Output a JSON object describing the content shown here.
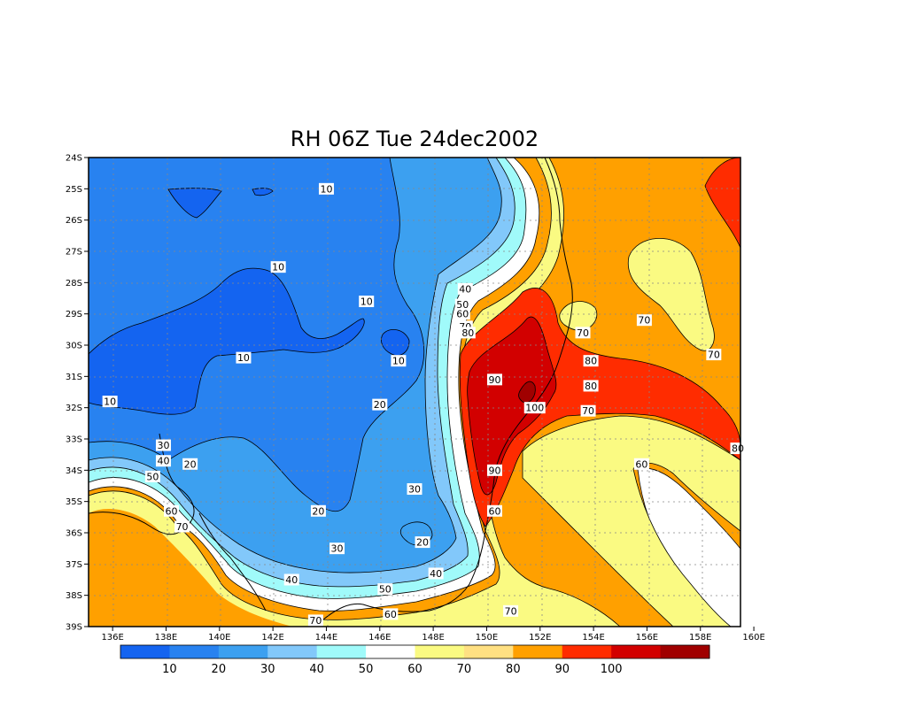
{
  "title": "RH 06Z Tue 24dec2002",
  "lat_ticks": [
    "24S",
    "25S",
    "26S",
    "27S",
    "28S",
    "29S",
    "30S",
    "31S",
    "32S",
    "33S",
    "34S",
    "35S",
    "36S",
    "37S",
    "38S",
    "39S"
  ],
  "lon_ticks": [
    "136E",
    "138E",
    "140E",
    "142E",
    "144E",
    "146E",
    "148E",
    "150E",
    "152E",
    "154E",
    "156E",
    "158E",
    "160E"
  ],
  "colorbar": {
    "colors": [
      "#1464f0",
      "#2882f0",
      "#3ca0f0",
      "#82c8fa",
      "#a0fafa",
      "#ffffff",
      "#fafa82",
      "#ffe082",
      "#ffa000",
      "#ff2c00",
      "#d20000",
      "#a00000"
    ],
    "labels": [
      "10",
      "20",
      "30",
      "40",
      "50",
      "60",
      "70",
      "80",
      "90",
      "100"
    ]
  },
  "contour_labels": [
    {
      "text": "10",
      "lon": 144.0,
      "lat": 25.0
    },
    {
      "text": "10",
      "lon": 142.2,
      "lat": 27.5
    },
    {
      "text": "10",
      "lon": 145.5,
      "lat": 28.6
    },
    {
      "text": "10",
      "lon": 140.9,
      "lat": 30.4
    },
    {
      "text": "10",
      "lon": 146.7,
      "lat": 30.5
    },
    {
      "text": "10",
      "lon": 135.9,
      "lat": 31.8
    },
    {
      "text": "20",
      "lon": 146.0,
      "lat": 31.9
    },
    {
      "text": "20",
      "lon": 138.9,
      "lat": 33.8
    },
    {
      "text": "20",
      "lon": 143.7,
      "lat": 35.3
    },
    {
      "text": "20",
      "lon": 147.6,
      "lat": 36.3
    },
    {
      "text": "30",
      "lon": 137.9,
      "lat": 33.2
    },
    {
      "text": "30",
      "lon": 147.3,
      "lat": 34.6
    },
    {
      "text": "30",
      "lon": 144.4,
      "lat": 36.5
    },
    {
      "text": "40",
      "lon": 137.9,
      "lat": 33.7
    },
    {
      "text": "40",
      "lon": 149.2,
      "lat": 28.2
    },
    {
      "text": "40",
      "lon": 142.7,
      "lat": 37.5
    },
    {
      "text": "40",
      "lon": 148.1,
      "lat": 37.3
    },
    {
      "text": "50",
      "lon": 137.5,
      "lat": 34.2
    },
    {
      "text": "50",
      "lon": 149.1,
      "lat": 28.7
    },
    {
      "text": "50",
      "lon": 146.2,
      "lat": 37.8
    },
    {
      "text": "60",
      "lon": 138.2,
      "lat": 35.3
    },
    {
      "text": "60",
      "lon": 149.1,
      "lat": 29.0
    },
    {
      "text": "60",
      "lon": 155.8,
      "lat": 33.8
    },
    {
      "text": "60",
      "lon": 146.4,
      "lat": 38.6
    },
    {
      "text": "60",
      "lon": 150.3,
      "lat": 35.3
    },
    {
      "text": "70",
      "lon": 138.6,
      "lat": 35.8
    },
    {
      "text": "70",
      "lon": 149.2,
      "lat": 29.4
    },
    {
      "text": "70",
      "lon": 153.6,
      "lat": 29.6
    },
    {
      "text": "70",
      "lon": 155.9,
      "lat": 29.2
    },
    {
      "text": "70",
      "lon": 158.5,
      "lat": 30.3
    },
    {
      "text": "70",
      "lon": 153.8,
      "lat": 32.1
    },
    {
      "text": "70",
      "lon": 150.9,
      "lat": 38.5
    },
    {
      "text": "70",
      "lon": 143.6,
      "lat": 38.8
    },
    {
      "text": "80",
      "lon": 149.3,
      "lat": 29.6
    },
    {
      "text": "80",
      "lon": 153.9,
      "lat": 30.5
    },
    {
      "text": "80",
      "lon": 153.9,
      "lat": 31.3
    },
    {
      "text": "80",
      "lon": 159.4,
      "lat": 33.3
    },
    {
      "text": "90",
      "lon": 150.3,
      "lat": 31.1
    },
    {
      "text": "90",
      "lon": 150.3,
      "lat": 34.0
    },
    {
      "text": "100",
      "lon": 151.8,
      "lat": 32.0
    }
  ]
}
